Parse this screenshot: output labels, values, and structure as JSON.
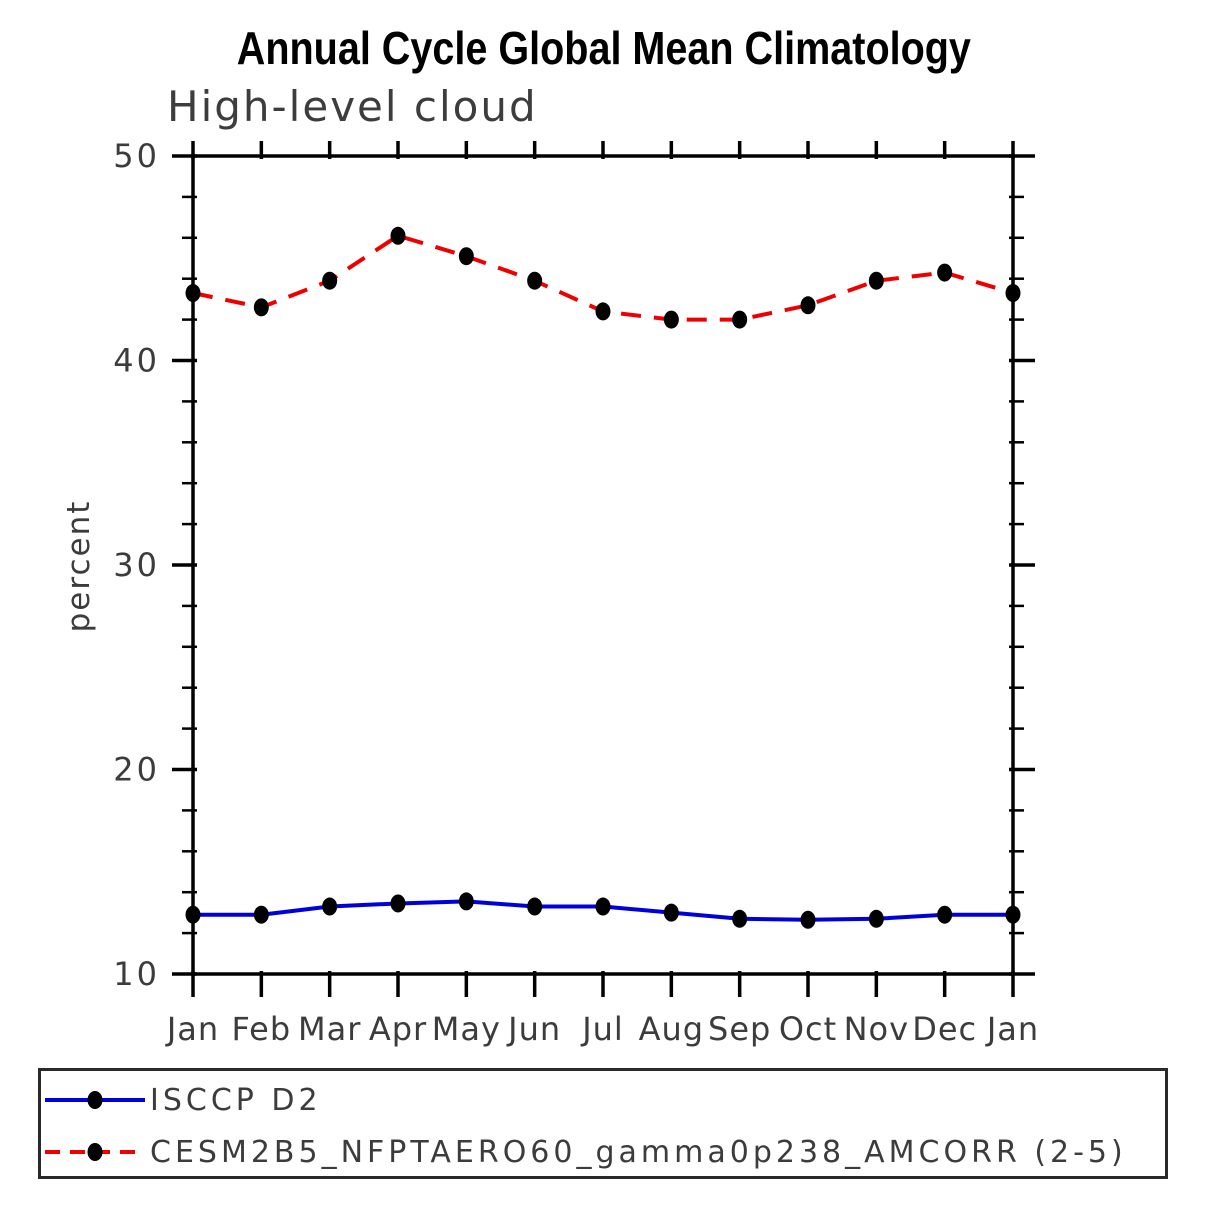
{
  "page": {
    "background": "#ffffff"
  },
  "chart_data": {
    "type": "line",
    "title": "Annual Cycle Global Mean Climatology",
    "subtitle": "High-level cloud",
    "xlabel": "",
    "ylabel": "percent",
    "categories": [
      "Jan",
      "Feb",
      "Mar",
      "Apr",
      "May",
      "Jun",
      "Jul",
      "Aug",
      "Sep",
      "Oct",
      "Nov",
      "Dec",
      "Jan"
    ],
    "ylim": [
      10,
      50
    ],
    "y_major_ticks": [
      10,
      20,
      30,
      40,
      50
    ],
    "y_minor_step": 2,
    "grid": "off",
    "legend_position": "bottom-box",
    "axis_color": "#000000",
    "tick_label_color": "#3c3c3c",
    "marker_color": "#000000",
    "series": [
      {
        "name": "ISCCP D2",
        "color": "#0000dd",
        "line_style": "solid",
        "marker": "filled-circle",
        "values": [
          12.9,
          12.9,
          13.3,
          13.45,
          13.55,
          13.3,
          13.3,
          13.0,
          12.7,
          12.65,
          12.7,
          12.9,
          12.9
        ]
      },
      {
        "name": "CESM2B5_NFPTAERO60_gamma0p238_AMCORR (2-5)",
        "color": "#ee0000",
        "line_style": "dashed",
        "marker": "filled-circle",
        "values": [
          43.3,
          42.6,
          43.9,
          46.1,
          45.1,
          43.9,
          42.4,
          42.0,
          42.0,
          42.7,
          43.9,
          44.3,
          43.3
        ]
      }
    ]
  }
}
